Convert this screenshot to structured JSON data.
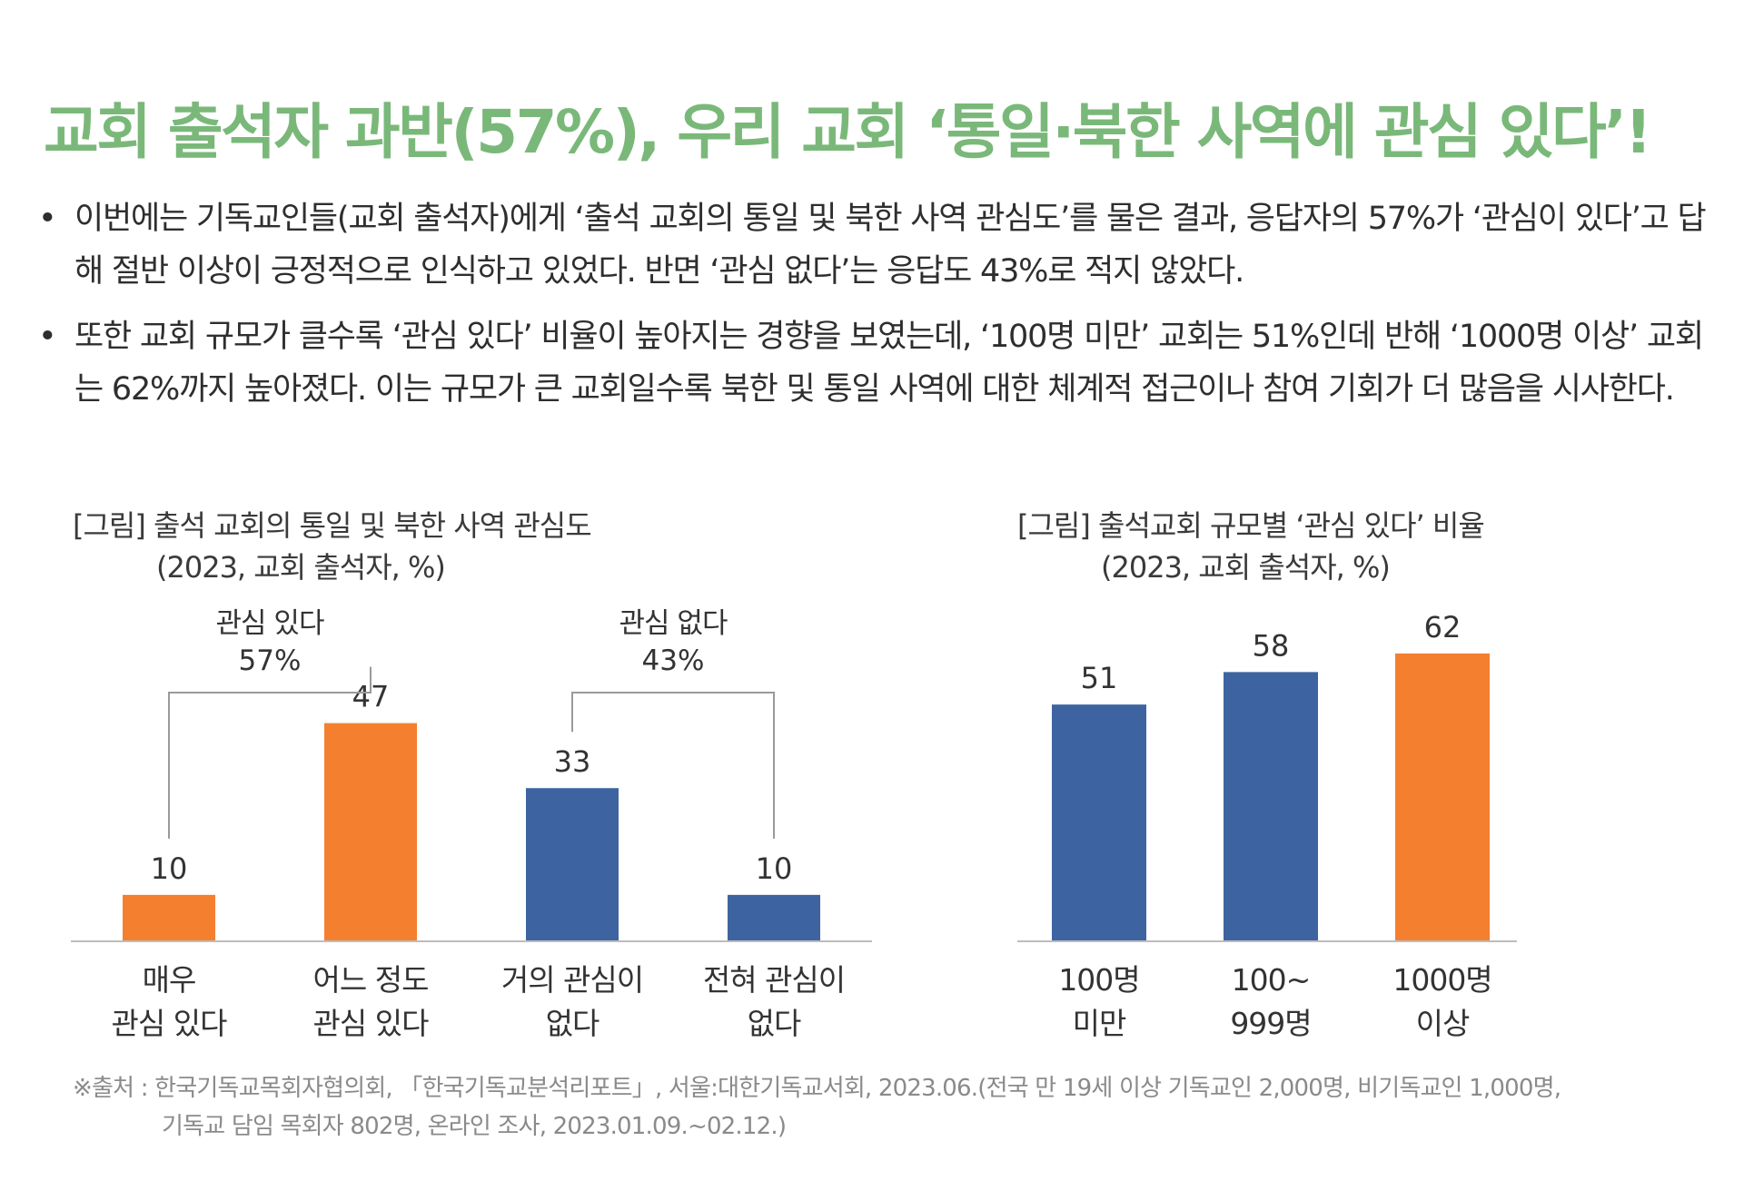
{
  "page": {
    "title": "교회 출석자 과반(57%), 우리 교회 ‘통일·북한 사역에 관심 있다’!",
    "bullets": [
      "이번에는 기독교인들(교회 출석자)에게 ‘출석 교회의 통일 및 북한 사역 관심도’를 물은 결과, 응답자의 57%가 ‘관심이 있다’고 답해 절반 이상이 긍정적으로 인식하고 있었다. 반면 ‘관심 없다’는 응답도 43%로 적지 않았다.",
      "또한 교회 규모가 클수록 ‘관심 있다’ 비율이 높아지는 경향을 보였는데, ‘100명 미만’ 교회는 51%인데 반해 ‘1000명 이상’ 교회는 62%까지 높아졌다. 이는 규모가 큰 교회일수록 북한 및 통일 사역에 대한 체계적 접근이나 참여 기회가 더 많음을 시사한다."
    ],
    "bullet_symbol": "•",
    "source_line1": "※출처 : 한국기독교목회자협의회, 「한국기독교분석리포트」, 서울:대한기독교서회, 2023.06.(전국 만 19세 이상 기독교인 2,000명, 비기독교인 1,000명,",
    "source_line2": "기독교 담임 목회자 802명, 온라인 조사, 2023.01.09.~02.12.)"
  },
  "colors": {
    "title": "#7ab87a",
    "orange": "#f47f2f",
    "blue": "#3d64a0",
    "axis": "#bdbdbd",
    "bracket": "#9a9a9a"
  },
  "chart_data": [
    {
      "type": "bar",
      "title": "[그림] 출석 교회의 통일 및 북한 사역 관심도",
      "subtitle": "(2023, 교회 출석자, %)",
      "categories": [
        [
          "매우",
          "관심 있다"
        ],
        [
          "어느 정도",
          "관심 있다"
        ],
        [
          "거의 관심이",
          "없다"
        ],
        [
          "전혀 관심이",
          "없다"
        ]
      ],
      "values": [
        10,
        47,
        33,
        10
      ],
      "bar_colors": [
        "orange",
        "orange",
        "blue",
        "blue"
      ],
      "ylim": [
        0,
        70
      ],
      "grid": false,
      "groups": [
        {
          "label": "관심 있다",
          "value": "57%",
          "from": 0,
          "to": 1
        },
        {
          "label": "관심 없다",
          "value": "43%",
          "from": 2,
          "to": 3
        }
      ]
    },
    {
      "type": "bar",
      "title": "[그림] 출석교회 규모별 ‘관심 있다’ 비율",
      "subtitle": "(2023, 교회 출석자, %)",
      "categories": [
        [
          "100명",
          "미만"
        ],
        [
          "100~",
          "999명"
        ],
        [
          "1000명",
          "이상"
        ]
      ],
      "values": [
        51,
        58,
        62
      ],
      "bar_colors": [
        "blue",
        "blue",
        "orange"
      ],
      "ylim": [
        0,
        70
      ],
      "grid": false
    }
  ]
}
